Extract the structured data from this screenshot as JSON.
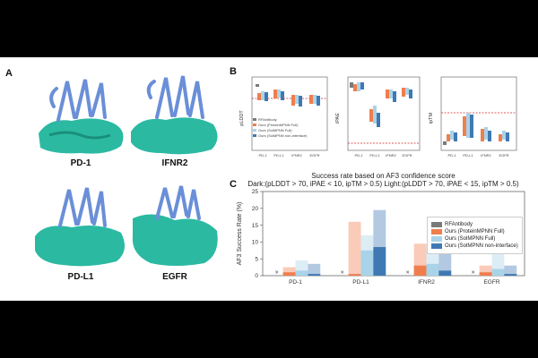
{
  "panels": {
    "a": "A",
    "b": "B",
    "c": "C"
  },
  "structures": [
    {
      "label": "PD-1"
    },
    {
      "label": "IFNR2"
    },
    {
      "label": "PD-L1"
    },
    {
      "label": "EGFR"
    }
  ],
  "colors": {
    "protein": "#6a8fd8",
    "surface": "#2bb9a2",
    "rfantibody": "#7a7a7a",
    "proteinmpnn_full": "#f07e4d",
    "solmpnn_full": "#a9d3e8",
    "solmpnn_noninterface": "#3f79b4",
    "threshold": "#d62728"
  },
  "panel_b": {
    "plots": [
      {
        "ylabel": "pLDDT",
        "ticks": [
          "50",
          "60",
          "70",
          "80",
          "90"
        ],
        "threshold_label": "70"
      },
      {
        "ylabel": "iPAE",
        "ticks": [
          "10",
          "15",
          "20",
          "25"
        ],
        "threshold_label": "10"
      },
      {
        "ylabel": "ipTM",
        "ticks": [
          "0.2",
          "0.4",
          "0.6",
          "0.8"
        ],
        "threshold_label": "0.5"
      }
    ],
    "categories": [
      "PD-1",
      "PD-L1",
      "IFNR2",
      "EGFR"
    ],
    "legend": [
      "RFAntibody",
      "Ours (ProteinMPNN Full)",
      "Ours (SolMPNN Full)",
      "Ours (SolMPNN non-interface)"
    ]
  },
  "panel_c": {
    "title_line1": "Success rate based on AF3 confidence score",
    "title_line2": "Dark:(pLDDT > 70, iPAE < 10, ipTM > 0.5) Light:(pLDDT > 70, iPAE < 15, ipTM > 0.5)"
  },
  "chart_data": {
    "type": "bar",
    "title": "Success rate based on AF3 confidence score",
    "subtitle": "Dark:(pLDDT > 70, iPAE < 10, ipTM > 0.5) Light:(pLDDT > 70, iPAE < 15, ipTM > 0.5)",
    "xlabel": "",
    "ylabel": "AF3 Success Rate (%)",
    "ylim": [
      0,
      25
    ],
    "yticks": [
      0,
      5,
      10,
      15,
      20,
      25
    ],
    "categories": [
      "PD-1",
      "PD-L1",
      "IFNR2",
      "EGFR"
    ],
    "series": [
      {
        "name": "RFAntibody",
        "dark": [
          0,
          0,
          0,
          0
        ],
        "light": [
          0,
          0,
          0,
          0
        ]
      },
      {
        "name": "Ours (ProteinMPNN Full)",
        "dark": [
          1.0,
          0.5,
          3.0,
          1.0
        ],
        "light": [
          2.5,
          16.0,
          9.5,
          3.0
        ]
      },
      {
        "name": "Ours (SolMPNN Full)",
        "dark": [
          1.5,
          7.5,
          3.5,
          2.0
        ],
        "light": [
          4.5,
          12.0,
          9.5,
          7.0
        ]
      },
      {
        "name": "Ours (SolMPNN non-interface)",
        "dark": [
          0.5,
          8.5,
          1.5,
          0.5
        ],
        "light": [
          3.5,
          19.5,
          8.0,
          3.0
        ]
      }
    ],
    "zero_marker": "x",
    "legend_position": "right"
  }
}
